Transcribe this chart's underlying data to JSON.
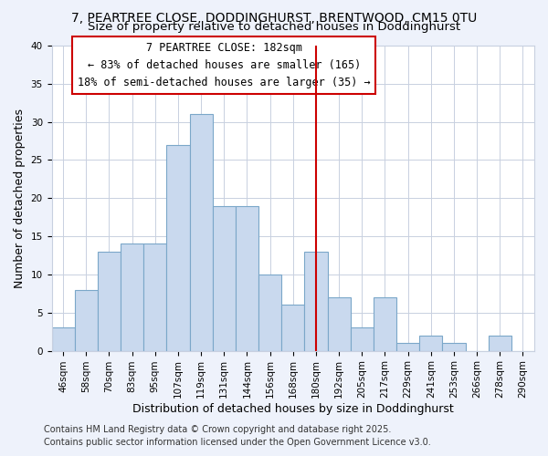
{
  "title": "7, PEARTREE CLOSE, DODDINGHURST, BRENTWOOD, CM15 0TU",
  "subtitle": "Size of property relative to detached houses in Doddinghurst",
  "xlabel": "Distribution of detached houses by size in Doddinghurst",
  "ylabel": "Number of detached properties",
  "bin_labels": [
    "46sqm",
    "58sqm",
    "70sqm",
    "83sqm",
    "95sqm",
    "107sqm",
    "119sqm",
    "131sqm",
    "144sqm",
    "156sqm",
    "168sqm",
    "180sqm",
    "192sqm",
    "205sqm",
    "217sqm",
    "229sqm",
    "241sqm",
    "253sqm",
    "266sqm",
    "278sqm",
    "290sqm"
  ],
  "bar_heights": [
    3,
    8,
    13,
    14,
    14,
    27,
    31,
    19,
    19,
    10,
    6,
    13,
    7,
    3,
    7,
    1,
    2,
    1,
    0,
    2,
    0
  ],
  "bar_color": "#c9d9ee",
  "bar_edge_color": "#7ba7c9",
  "marker_index": 11,
  "marker_line_color": "#cc0000",
  "annotation_title": "7 PEARTREE CLOSE: 182sqm",
  "annotation_line1": "← 83% of detached houses are smaller (165)",
  "annotation_line2": "18% of semi-detached houses are larger (35) →",
  "ylim": [
    0,
    40
  ],
  "yticks": [
    0,
    5,
    10,
    15,
    20,
    25,
    30,
    35,
    40
  ],
  "footer1": "Contains HM Land Registry data © Crown copyright and database right 2025.",
  "footer2": "Contains public sector information licensed under the Open Government Licence v3.0.",
  "bg_color": "#eef2fb",
  "plot_bg_color": "#ffffff",
  "grid_color": "#c8d0e0",
  "title_fontsize": 10,
  "subtitle_fontsize": 9.5,
  "axis_label_fontsize": 9,
  "tick_fontsize": 7.5,
  "annotation_fontsize": 8.5,
  "footer_fontsize": 7
}
